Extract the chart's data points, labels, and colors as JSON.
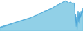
{
  "values": [
    18,
    16,
    19,
    17,
    20,
    18,
    21,
    19,
    22,
    20,
    23,
    21,
    24,
    22,
    25,
    23,
    26,
    24,
    27,
    25,
    28,
    26,
    29,
    27,
    30,
    28,
    31,
    30,
    32,
    31,
    33,
    32,
    34,
    33,
    35,
    34,
    36,
    35,
    37,
    36,
    38,
    37,
    39,
    38,
    40,
    39,
    41,
    40,
    42,
    41,
    43,
    42,
    44,
    43,
    45,
    44,
    46,
    45,
    47,
    46,
    48,
    47,
    49,
    48,
    50,
    51,
    52,
    51,
    53,
    52,
    54,
    55,
    54,
    56,
    57,
    56,
    58,
    59,
    60,
    61,
    62,
    61,
    63,
    62,
    64,
    65,
    66,
    65,
    67,
    68,
    69,
    70,
    71,
    70,
    72,
    71,
    73,
    72,
    74,
    75,
    76,
    77,
    78,
    77,
    79,
    78,
    80,
    81,
    82,
    83,
    84,
    85,
    86,
    87,
    88,
    87,
    89,
    90,
    91,
    92,
    93,
    92,
    94,
    95,
    96,
    97,
    98,
    97,
    99,
    100,
    101,
    102,
    101,
    103,
    104,
    105,
    104,
    103,
    102,
    101,
    100,
    99,
    98,
    99,
    100,
    101,
    100,
    99,
    98,
    97,
    96,
    97,
    98,
    97,
    80,
    30,
    60,
    20,
    50,
    10,
    40,
    70,
    35,
    65,
    30,
    60,
    50,
    70,
    55,
    75,
    65,
    80
  ],
  "line_color": "#4da6d9",
  "fill_color": "#7ec8e3",
  "background_color": "#ffffff",
  "ylim_min": 5,
  "ylim_max": 108
}
